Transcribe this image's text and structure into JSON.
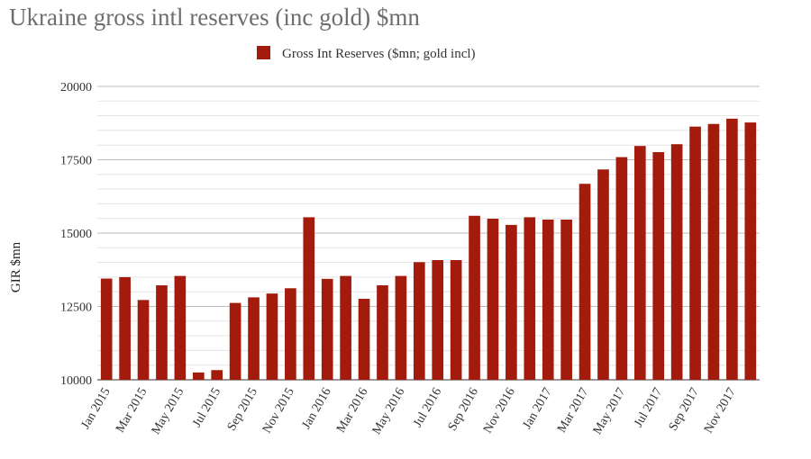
{
  "chart_data": {
    "type": "bar",
    "title": "Ukraine gross intl reserves (inc gold) $mn",
    "ylabel": "GIR $mn",
    "xlabel": "",
    "ylim": [
      10000,
      20000
    ],
    "yticks": [
      "10000",
      "12500",
      "15000",
      "17500",
      "20000"
    ],
    "ytick_values": [
      10000,
      12500,
      15000,
      17500,
      20000
    ],
    "minor_grid_step": 500,
    "grid": true,
    "legend_position": "top-center",
    "bar_color": "#a31b0c",
    "categories": [
      "Jan 2015",
      "Feb 2015",
      "Mar 2015",
      "Apr 2015",
      "May 2015",
      "Jun 2015",
      "Jul 2015",
      "Aug 2015",
      "Sep 2015",
      "Oct 2015",
      "Nov 2015",
      "Dec 2015",
      "Jan 2016",
      "Feb 2016",
      "Mar 2016",
      "Apr 2016",
      "May 2016",
      "Jun 2016",
      "Jul 2016",
      "Aug 2016",
      "Sep 2016",
      "Oct 2016",
      "Nov 2016",
      "Dec 2016",
      "Jan 2017",
      "Feb 2017",
      "Mar 2017",
      "Apr 2017",
      "May 2017",
      "Jun 2017",
      "Jul 2017",
      "Aug 2017",
      "Sep 2017",
      "Oct 2017",
      "Nov 2017",
      "Dec 2017"
    ],
    "xtick_labels": [
      "Jan 2015",
      "",
      "Mar 2015",
      "",
      "May 2015",
      "",
      "Jul 2015",
      "",
      "Sep 2015",
      "",
      "Nov 2015",
      "",
      "Jan 2016",
      "",
      "Mar 2016",
      "",
      "May 2016",
      "",
      "Jul 2016",
      "",
      "Sep 2016",
      "",
      "Nov 2016",
      "",
      "Jan 2017",
      "",
      "Mar 2017",
      "",
      "May 2017",
      "",
      "Jul 2017",
      "",
      "Sep 2017",
      "",
      "Nov 2017",
      ""
    ],
    "series": [
      {
        "name": "Gross Int Reserves ($mn; gold incl)",
        "values": [
          13450,
          13500,
          12720,
          13220,
          13540,
          10250,
          10330,
          12620,
          12810,
          12940,
          13120,
          15540,
          13440,
          13540,
          12760,
          13220,
          13540,
          14010,
          14080,
          14080,
          15590,
          15490,
          15280,
          15540,
          15460,
          15460,
          16680,
          17170,
          17590,
          17970,
          17760,
          18030,
          18630,
          18720,
          18900,
          18770
        ]
      }
    ]
  }
}
